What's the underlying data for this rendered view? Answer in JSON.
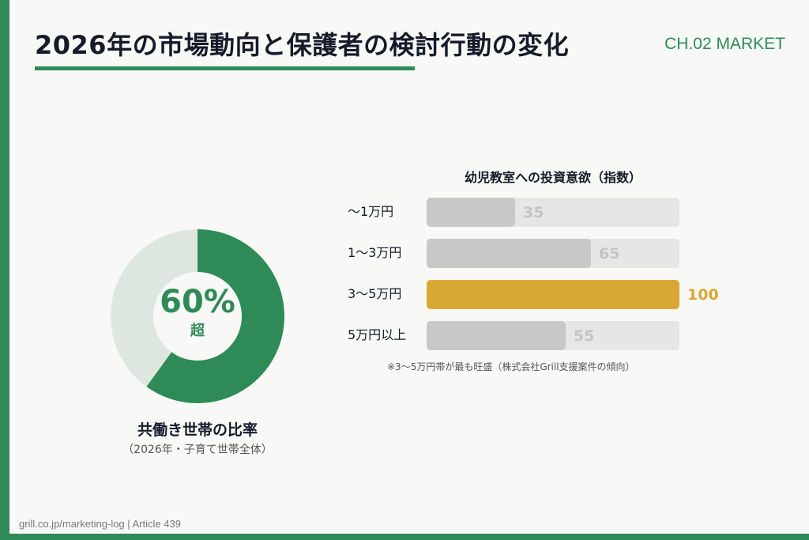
{
  "header": {
    "title": "2026年の市場動向と保護者の検討行動の変化",
    "chapter": "CH.02 MARKET"
  },
  "colors": {
    "accent": "#2e8b57",
    "donut_rest": "#dde7df",
    "bar_track": "#e6e6e6",
    "bar_default": "#c8c8c8",
    "bar_default_value": "#c4c4c4",
    "bar_highlight": "#d9a834"
  },
  "donut": {
    "value": "60%",
    "suffix": "超",
    "label": "共働き世帯の比率",
    "sublabel": "（2026年・子育て世帯全体）"
  },
  "footer": {
    "text": "grill.co.jp/marketing-log | Article 439"
  },
  "chart_data": [
    {
      "type": "pie",
      "variant": "donut",
      "slices": [
        {
          "label": "共働き世帯",
          "value": 60
        },
        {
          "label": "",
          "value": 40
        }
      ],
      "center_label": "60%",
      "center_suffix": "超"
    },
    {
      "type": "bar",
      "orientation": "horizontal",
      "title": "幼児教室への投資意欲（指数）",
      "categories": [
        "〜1万円",
        "1〜3万円",
        "3〜5万円",
        "5万円以上"
      ],
      "values": [
        35,
        65,
        100,
        55
      ],
      "value_labels": [
        "35",
        "65",
        "100",
        "55"
      ],
      "xlim": [
        0,
        100
      ],
      "highlight_index": 2,
      "grid": false,
      "note": "※3〜5万円帯が最も旺盛（株式会社Grill支援案件の傾向）"
    }
  ]
}
